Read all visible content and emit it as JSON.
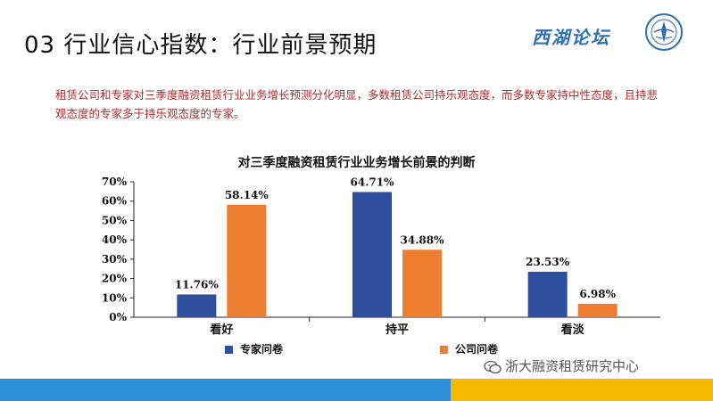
{
  "header": {
    "title": "03 行业信心指数：行业前景预期",
    "logo_text": "西湖论坛"
  },
  "description": "租赁公司和专家对三季度融资租赁行业业务增长预测分化明显，多数租赁公司持乐观态度，而多数专家持中性态度，且持悲观态度的专家多于持乐观态度的专家。",
  "chart_data": {
    "type": "bar",
    "title": "对三季度融资租赁行业业务增长前景的判断",
    "categories": [
      "看好",
      "持平",
      "看淡"
    ],
    "series": [
      {
        "name": "专家问卷",
        "values": [
          11.76,
          64.71,
          23.53
        ],
        "labels": [
          "11.76%",
          "64.71%",
          "23.53%"
        ],
        "color": "#2e4f9e"
      },
      {
        "name": "公司问卷",
        "values": [
          58.14,
          34.88,
          6.98
        ],
        "labels": [
          "58.14%",
          "34.88%",
          "6.98%"
        ],
        "color": "#ed7d31"
      }
    ],
    "ylim": [
      0,
      70
    ],
    "yticks": [
      "0%",
      "10%",
      "20%",
      "30%",
      "40%",
      "50%",
      "60%",
      "70%"
    ],
    "xlabel": "",
    "ylabel": "",
    "grid": false,
    "legend_position": "bottom"
  },
  "footer": {
    "watermark": "浙大融资租赁研究中心",
    "colors": {
      "blue": "#2e8fd8",
      "yellow": "#f5b800"
    }
  }
}
